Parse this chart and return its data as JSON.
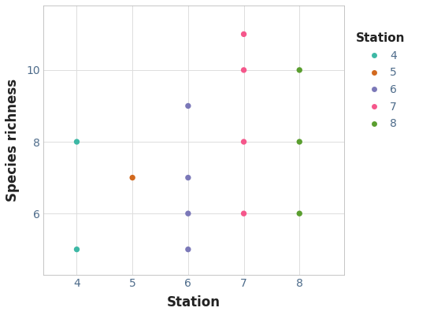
{
  "title": "",
  "xlabel": "Station",
  "ylabel": "Species richness",
  "background_color": "#ffffff",
  "panel_background": "#ffffff",
  "grid_color": "#dddddd",
  "stations": {
    "4": {
      "x": [
        4,
        4
      ],
      "y": [
        5,
        8
      ],
      "color": "#3db8a5",
      "label": "4"
    },
    "5": {
      "x": [
        5
      ],
      "y": [
        7
      ],
      "color": "#d2691e",
      "label": "5"
    },
    "6": {
      "x": [
        6,
        6,
        6,
        6
      ],
      "y": [
        5,
        6,
        7,
        9
      ],
      "color": "#7b78b8",
      "label": "6"
    },
    "7": {
      "x": [
        7,
        7,
        7,
        7
      ],
      "y": [
        6,
        8,
        10,
        11
      ],
      "color": "#f5578b",
      "label": "7"
    },
    "8": {
      "x": [
        8,
        8,
        8
      ],
      "y": [
        6,
        8,
        10
      ],
      "color": "#5a9e2f",
      "label": "8"
    }
  },
  "xlim": [
    3.4,
    8.8
  ],
  "ylim": [
    4.3,
    11.8
  ],
  "xticks": [
    4,
    5,
    6,
    7,
    8
  ],
  "yticks": [
    6,
    8,
    10
  ],
  "tick_label_color": "#4d6b8a",
  "legend_title": "Station",
  "marker_size": 28,
  "legend_fontsize": 10,
  "axis_label_fontsize": 12,
  "tick_fontsize": 10,
  "legend_title_fontsize": 11
}
